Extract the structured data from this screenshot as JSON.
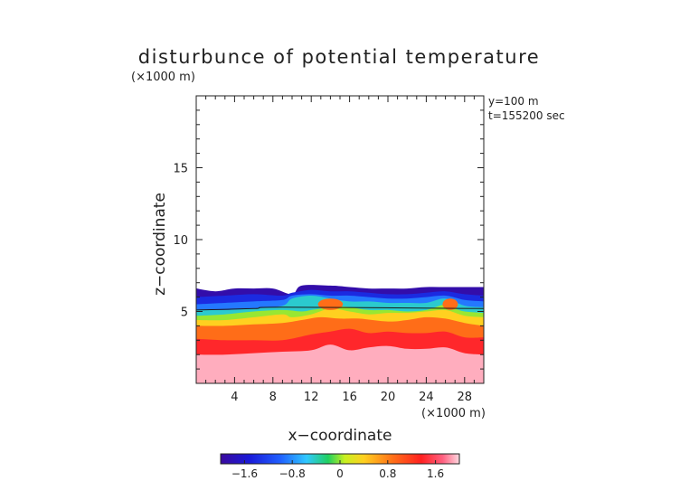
{
  "chart_data": {
    "type": "heatmap",
    "title": "disturbunce of potential temperature",
    "unit_label": "(×1000 m)",
    "xlabel": "x−coordinate",
    "ylabel": "z−coordinate",
    "x_unit_label": "(×1000 m)",
    "annotations": [
      "y=100 m",
      "t=155200 sec"
    ],
    "xlim": [
      0,
      30
    ],
    "ylim": [
      0,
      20
    ],
    "x_ticks": [
      4,
      8,
      12,
      16,
      20,
      24,
      28
    ],
    "x_tick_labels": [
      "4",
      "8",
      "12",
      "16",
      "20",
      "24",
      "28"
    ],
    "y_ticks": [
      5,
      10,
      15
    ],
    "y_tick_labels": [
      "5",
      "10",
      "15"
    ],
    "colorbar": {
      "range": [
        -2.0,
        2.0
      ],
      "ticks": [
        -1.6,
        -0.8,
        0,
        0.8,
        1.6
      ],
      "tick_labels": [
        "−1.6",
        "−0.8",
        "0",
        "0.8",
        "1.6"
      ]
    },
    "layers": [
      {
        "value": 1.9,
        "top": [
          [
            0,
            2.0
          ],
          [
            3,
            2.0
          ],
          [
            6,
            2.1
          ],
          [
            9,
            2.2
          ],
          [
            12,
            2.3
          ],
          [
            14,
            2.7
          ],
          [
            16,
            2.3
          ],
          [
            18,
            2.5
          ],
          [
            20,
            2.6
          ],
          [
            22,
            2.4
          ],
          [
            24,
            2.4
          ],
          [
            26,
            2.5
          ],
          [
            28,
            2.1
          ],
          [
            30,
            2.0
          ]
        ]
      },
      {
        "value": 1.4,
        "top": [
          [
            0,
            3.1
          ],
          [
            3,
            3.0
          ],
          [
            6,
            3.0
          ],
          [
            9,
            3.0
          ],
          [
            12,
            3.4
          ],
          [
            14,
            3.6
          ],
          [
            16,
            3.8
          ],
          [
            18,
            3.5
          ],
          [
            20,
            3.6
          ],
          [
            22,
            3.5
          ],
          [
            24,
            3.5
          ],
          [
            26,
            3.6
          ],
          [
            28,
            3.2
          ],
          [
            30,
            3.2
          ]
        ]
      },
      {
        "value": 0.9,
        "top": [
          [
            0,
            4.0
          ],
          [
            3,
            4.0
          ],
          [
            6,
            4.1
          ],
          [
            9,
            4.2
          ],
          [
            11,
            4.4
          ],
          [
            13,
            4.6
          ],
          [
            15,
            4.5
          ],
          [
            17,
            4.5
          ],
          [
            20,
            4.3
          ],
          [
            22,
            4.4
          ],
          [
            24,
            4.6
          ],
          [
            26,
            4.5
          ],
          [
            28,
            4.2
          ],
          [
            30,
            4.0
          ]
        ]
      },
      {
        "value": 0.4,
        "top": [
          [
            0,
            4.4
          ],
          [
            3,
            4.4
          ],
          [
            6,
            4.6
          ],
          [
            9,
            4.8
          ],
          [
            10,
            4.6
          ],
          [
            12,
            4.8
          ],
          [
            14,
            5.2
          ],
          [
            16,
            5.0
          ],
          [
            18,
            4.8
          ],
          [
            20,
            4.9
          ],
          [
            22,
            4.9
          ],
          [
            24,
            5.0
          ],
          [
            26,
            5.1
          ],
          [
            28,
            4.7
          ],
          [
            30,
            4.6
          ]
        ]
      },
      {
        "value": 0.0,
        "top": [
          [
            0,
            4.7
          ],
          [
            3,
            4.8
          ],
          [
            6,
            5.0
          ],
          [
            9,
            5.1
          ],
          [
            11,
            5.0
          ],
          [
            12,
            5.1
          ],
          [
            13,
            5.2
          ],
          [
            14,
            5.4
          ],
          [
            16,
            5.3
          ],
          [
            18,
            5.1
          ],
          [
            20,
            5.1
          ],
          [
            22,
            5.0
          ],
          [
            24,
            5.1
          ],
          [
            26,
            5.5
          ],
          [
            27,
            5.2
          ],
          [
            28,
            5.0
          ],
          [
            30,
            4.9
          ]
        ]
      },
      {
        "value": -0.45,
        "top": [
          [
            0,
            5.1
          ],
          [
            3,
            5.1
          ],
          [
            6,
            5.2
          ],
          [
            9,
            5.4
          ],
          [
            10,
            5.9
          ],
          [
            12,
            6.1
          ],
          [
            14,
            5.9
          ],
          [
            16,
            5.7
          ],
          [
            18,
            5.7
          ],
          [
            20,
            5.6
          ],
          [
            22,
            5.6
          ],
          [
            24,
            5.6
          ],
          [
            26,
            5.9
          ],
          [
            28,
            5.4
          ],
          [
            30,
            5.3
          ]
        ]
      },
      {
        "value": -0.9,
        "top": [
          [
            0,
            5.5
          ],
          [
            3,
            5.6
          ],
          [
            6,
            5.7
          ],
          [
            9,
            5.8
          ],
          [
            10,
            6.1
          ],
          [
            12,
            6.2
          ],
          [
            14,
            6.1
          ],
          [
            16,
            6.1
          ],
          [
            18,
            6.0
          ],
          [
            20,
            5.9
          ],
          [
            22,
            5.9
          ],
          [
            24,
            6.0
          ],
          [
            26,
            6.1
          ],
          [
            28,
            5.8
          ],
          [
            30,
            5.7
          ]
        ]
      },
      {
        "value": -1.4,
        "top": [
          [
            0,
            6.0
          ],
          [
            3,
            6.1
          ],
          [
            6,
            6.2
          ],
          [
            9,
            6.1
          ],
          [
            10,
            6.3
          ],
          [
            12,
            6.5
          ],
          [
            14,
            6.4
          ],
          [
            16,
            6.4
          ],
          [
            18,
            6.3
          ],
          [
            20,
            6.2
          ],
          [
            22,
            6.2
          ],
          [
            24,
            6.3
          ],
          [
            26,
            6.4
          ],
          [
            28,
            6.2
          ],
          [
            30,
            6.1
          ]
        ]
      },
      {
        "value": -1.9,
        "top": [
          [
            0,
            6.6
          ],
          [
            2,
            6.4
          ],
          [
            4,
            6.6
          ],
          [
            6,
            6.6
          ],
          [
            8,
            6.6
          ],
          [
            10,
            6.2
          ],
          [
            11,
            6.8
          ],
          [
            14,
            6.8
          ],
          [
            16,
            6.7
          ],
          [
            18,
            6.6
          ],
          [
            20,
            6.6
          ],
          [
            22,
            6.6
          ],
          [
            24,
            6.7
          ],
          [
            26,
            6.7
          ],
          [
            28,
            6.7
          ],
          [
            30,
            6.7
          ]
        ]
      }
    ],
    "inlets": [
      {
        "value": 0.9,
        "center": [
          14,
          5.5
        ],
        "radius": [
          1.3,
          0.4
        ]
      },
      {
        "value": 0.9,
        "center": [
          26.5,
          5.5
        ],
        "radius": [
          0.8,
          0.4
        ]
      }
    ],
    "contour_line": {
      "value": 0.0,
      "points": [
        [
          0,
          5.1
        ],
        [
          6,
          5.2
        ],
        [
          9,
          5.3
        ],
        [
          30,
          5.2
        ]
      ]
    }
  }
}
